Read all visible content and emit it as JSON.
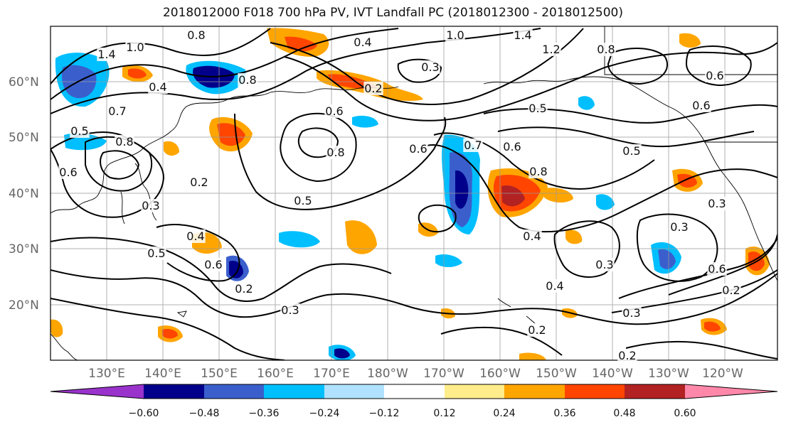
{
  "title": "2018012000 F018 700 hPa PV, IVT Landfall PC (2018012300 - 2018012500)",
  "latitude_labels": [
    "60°N",
    "50°N",
    "40°N",
    "30°N",
    "20°N"
  ],
  "longitude_labels": [
    "130°E",
    "140°E",
    "150°E",
    "160°E",
    "170°E",
    "180°W",
    "170°W",
    "160°W",
    "150°W",
    "140°W",
    "130°W",
    "120°W"
  ],
  "colorbar": {
    "ticks": [
      "−0.60",
      "−0.48",
      "−0.36",
      "−0.24",
      "−0.12",
      "0.12",
      "0.24",
      "0.36",
      "0.48",
      "0.60"
    ],
    "colors": [
      "#9933cc",
      "#00008b",
      "#3a5fcd",
      "#00bfff",
      "#b0e2ff",
      "#ffffff",
      "#ffec8b",
      "#ffa500",
      "#ff4500",
      "#b22222",
      "#ff88aa"
    ]
  },
  "contour_labels": [
    "0.8",
    "1.4",
    "1.0",
    "0.4",
    "0.7",
    "0.5",
    "0.6",
    "0.8",
    "0.4",
    "0.8",
    "0.2",
    "0.6",
    "0.3",
    "1.0",
    "1.4",
    "1.2",
    "0.8",
    "0.6",
    "0.5",
    "0.6",
    "0.5",
    "0.8",
    "0.7",
    "0.6",
    "0.8",
    "0.5",
    "0.4",
    "0.2",
    "0.3",
    "0.4",
    "0.3",
    "0.4",
    "0.6",
    "0.2",
    "0.3",
    "0.5",
    "0.6",
    "0.3",
    "0.2",
    "0.3",
    "0.2",
    "0.2",
    "0.6",
    "0.3"
  ]
}
